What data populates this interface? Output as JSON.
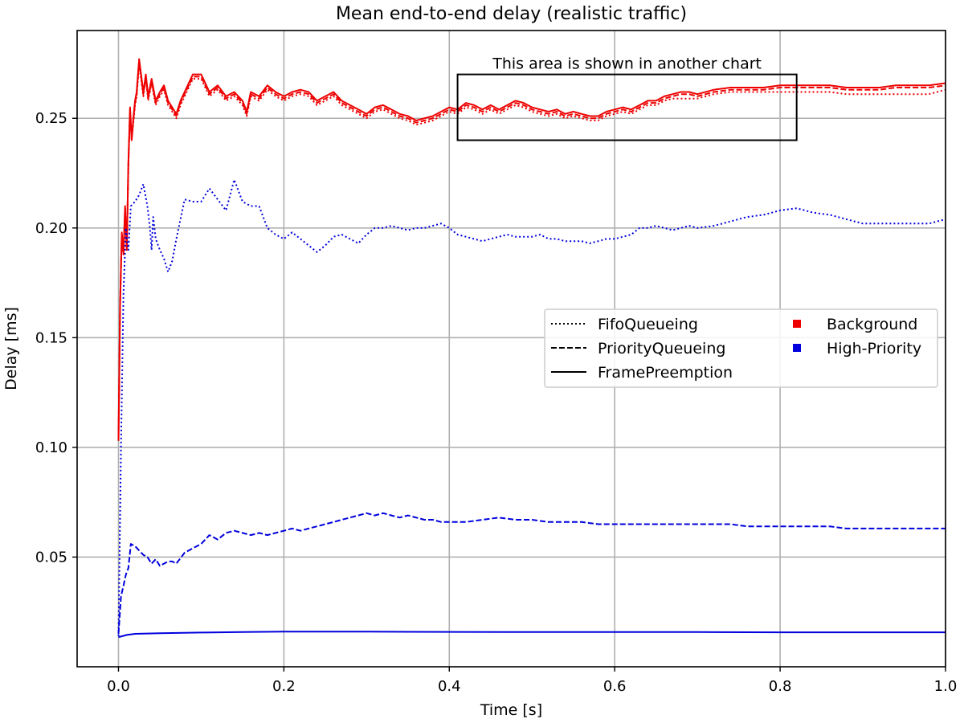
{
  "chart_data": {
    "type": "line",
    "title": "Mean end-to-end delay (realistic traffic)",
    "xlabel": "Time [s]",
    "ylabel": "Delay [ms]",
    "xlim": [
      -0.05,
      1.0
    ],
    "ylim": [
      0.0,
      0.29
    ],
    "xticks": [
      0.0,
      0.2,
      0.4,
      0.6,
      0.8,
      1.0
    ],
    "xtick_labels": [
      "0.0",
      "0.2",
      "0.4",
      "0.6",
      "0.8",
      "1.0"
    ],
    "yticks": [
      0.05,
      0.1,
      0.15,
      0.2,
      0.25
    ],
    "ytick_labels": [
      "0.05",
      "0.10",
      "0.15",
      "0.20",
      "0.25"
    ],
    "grid": true,
    "legend_position": "center-right",
    "colors": {
      "background": "#ee0000",
      "high_priority": "#0000dd"
    },
    "legend": {
      "styles": [
        {
          "label": "FifoQueueing",
          "dash": "dotted"
        },
        {
          "label": "PriorityQueueing",
          "dash": "dashed"
        },
        {
          "label": "FramePreemption",
          "dash": "solid"
        }
      ],
      "classes": [
        {
          "label": "Background",
          "color": "#ee0000"
        },
        {
          "label": "High-Priority",
          "color": "#0000dd"
        }
      ]
    },
    "annotation": {
      "text": "This area is shown in another chart",
      "x_range": [
        0.41,
        0.82
      ],
      "y_range": [
        0.24,
        0.27
      ]
    },
    "series": [
      {
        "name": "Background / FramePreemption",
        "color": "#ee0000",
        "dash": "solid",
        "x": [
          0.0,
          0.002,
          0.004,
          0.006,
          0.008,
          0.01,
          0.012,
          0.014,
          0.016,
          0.018,
          0.02,
          0.022,
          0.025,
          0.028,
          0.03,
          0.033,
          0.036,
          0.04,
          0.045,
          0.05,
          0.055,
          0.06,
          0.065,
          0.07,
          0.075,
          0.08,
          0.09,
          0.1,
          0.11,
          0.12,
          0.13,
          0.14,
          0.15,
          0.155,
          0.16,
          0.17,
          0.18,
          0.19,
          0.2,
          0.21,
          0.22,
          0.23,
          0.24,
          0.25,
          0.26,
          0.27,
          0.28,
          0.29,
          0.3,
          0.31,
          0.32,
          0.33,
          0.34,
          0.35,
          0.36,
          0.37,
          0.38,
          0.39,
          0.4,
          0.41,
          0.42,
          0.43,
          0.44,
          0.45,
          0.46,
          0.47,
          0.48,
          0.49,
          0.5,
          0.51,
          0.52,
          0.53,
          0.54,
          0.55,
          0.56,
          0.57,
          0.58,
          0.59,
          0.6,
          0.61,
          0.62,
          0.63,
          0.64,
          0.65,
          0.66,
          0.67,
          0.68,
          0.69,
          0.7,
          0.72,
          0.74,
          0.76,
          0.78,
          0.8,
          0.82,
          0.84,
          0.86,
          0.88,
          0.9,
          0.92,
          0.94,
          0.96,
          0.98,
          1.0
        ],
        "y": [
          0.103,
          0.165,
          0.198,
          0.188,
          0.21,
          0.19,
          0.23,
          0.255,
          0.24,
          0.25,
          0.258,
          0.262,
          0.277,
          0.268,
          0.262,
          0.27,
          0.26,
          0.268,
          0.258,
          0.262,
          0.265,
          0.258,
          0.255,
          0.252,
          0.258,
          0.262,
          0.27,
          0.27,
          0.262,
          0.265,
          0.26,
          0.262,
          0.258,
          0.253,
          0.262,
          0.26,
          0.265,
          0.262,
          0.26,
          0.262,
          0.263,
          0.262,
          0.258,
          0.26,
          0.262,
          0.258,
          0.256,
          0.254,
          0.252,
          0.255,
          0.256,
          0.254,
          0.252,
          0.251,
          0.249,
          0.25,
          0.251,
          0.253,
          0.255,
          0.254,
          0.257,
          0.256,
          0.254,
          0.256,
          0.254,
          0.256,
          0.258,
          0.257,
          0.255,
          0.254,
          0.253,
          0.254,
          0.252,
          0.253,
          0.252,
          0.251,
          0.251,
          0.253,
          0.254,
          0.255,
          0.254,
          0.256,
          0.258,
          0.258,
          0.26,
          0.261,
          0.262,
          0.262,
          0.261,
          0.263,
          0.264,
          0.264,
          0.264,
          0.265,
          0.265,
          0.265,
          0.265,
          0.264,
          0.264,
          0.264,
          0.265,
          0.265,
          0.265,
          0.266
        ]
      },
      {
        "name": "Background / PriorityQueueing",
        "color": "#ee0000",
        "dash": "dashed",
        "x": [
          0.0,
          0.002,
          0.004,
          0.006,
          0.008,
          0.01,
          0.012,
          0.014,
          0.016,
          0.018,
          0.02,
          0.022,
          0.025,
          0.028,
          0.03,
          0.033,
          0.036,
          0.04,
          0.045,
          0.05,
          0.055,
          0.06,
          0.065,
          0.07,
          0.075,
          0.08,
          0.09,
          0.1,
          0.11,
          0.12,
          0.13,
          0.14,
          0.15,
          0.155,
          0.16,
          0.17,
          0.18,
          0.19,
          0.2,
          0.21,
          0.22,
          0.23,
          0.24,
          0.25,
          0.26,
          0.27,
          0.28,
          0.29,
          0.3,
          0.31,
          0.32,
          0.33,
          0.34,
          0.35,
          0.36,
          0.37,
          0.38,
          0.39,
          0.4,
          0.41,
          0.42,
          0.43,
          0.44,
          0.45,
          0.46,
          0.47,
          0.48,
          0.49,
          0.5,
          0.51,
          0.52,
          0.53,
          0.54,
          0.55,
          0.56,
          0.57,
          0.58,
          0.59,
          0.6,
          0.61,
          0.62,
          0.63,
          0.64,
          0.65,
          0.66,
          0.67,
          0.68,
          0.69,
          0.7,
          0.72,
          0.74,
          0.76,
          0.78,
          0.8,
          0.82,
          0.84,
          0.86,
          0.88,
          0.9,
          0.92,
          0.94,
          0.96,
          0.98,
          1.0
        ],
        "y": [
          0.104,
          0.166,
          0.197,
          0.189,
          0.209,
          0.191,
          0.229,
          0.254,
          0.241,
          0.249,
          0.257,
          0.261,
          0.276,
          0.267,
          0.261,
          0.269,
          0.259,
          0.267,
          0.257,
          0.261,
          0.264,
          0.257,
          0.254,
          0.251,
          0.257,
          0.261,
          0.269,
          0.269,
          0.261,
          0.264,
          0.259,
          0.261,
          0.257,
          0.252,
          0.261,
          0.259,
          0.264,
          0.261,
          0.259,
          0.261,
          0.262,
          0.261,
          0.257,
          0.259,
          0.261,
          0.257,
          0.255,
          0.253,
          0.251,
          0.254,
          0.255,
          0.253,
          0.251,
          0.25,
          0.248,
          0.249,
          0.25,
          0.252,
          0.254,
          0.253,
          0.256,
          0.255,
          0.253,
          0.255,
          0.253,
          0.255,
          0.257,
          0.256,
          0.254,
          0.253,
          0.252,
          0.253,
          0.251,
          0.252,
          0.251,
          0.25,
          0.25,
          0.252,
          0.253,
          0.254,
          0.253,
          0.255,
          0.257,
          0.257,
          0.259,
          0.26,
          0.261,
          0.261,
          0.26,
          0.262,
          0.263,
          0.263,
          0.263,
          0.264,
          0.264,
          0.264,
          0.264,
          0.263,
          0.263,
          0.263,
          0.264,
          0.264,
          0.264,
          0.265
        ]
      },
      {
        "name": "Background / FifoQueueing",
        "color": "#ee0000",
        "dash": "dotted",
        "x": [
          0.0,
          0.002,
          0.004,
          0.006,
          0.008,
          0.01,
          0.012,
          0.014,
          0.016,
          0.018,
          0.02,
          0.022,
          0.025,
          0.028,
          0.03,
          0.033,
          0.036,
          0.04,
          0.045,
          0.05,
          0.055,
          0.06,
          0.065,
          0.07,
          0.075,
          0.08,
          0.09,
          0.1,
          0.11,
          0.12,
          0.13,
          0.14,
          0.15,
          0.155,
          0.16,
          0.17,
          0.18,
          0.19,
          0.2,
          0.21,
          0.22,
          0.23,
          0.24,
          0.25,
          0.26,
          0.27,
          0.28,
          0.29,
          0.3,
          0.31,
          0.32,
          0.33,
          0.34,
          0.35,
          0.36,
          0.37,
          0.38,
          0.39,
          0.4,
          0.41,
          0.42,
          0.43,
          0.44,
          0.45,
          0.46,
          0.47,
          0.48,
          0.49,
          0.5,
          0.51,
          0.52,
          0.53,
          0.54,
          0.55,
          0.56,
          0.57,
          0.58,
          0.59,
          0.6,
          0.61,
          0.62,
          0.63,
          0.64,
          0.65,
          0.66,
          0.67,
          0.68,
          0.69,
          0.7,
          0.72,
          0.74,
          0.76,
          0.78,
          0.8,
          0.82,
          0.84,
          0.86,
          0.88,
          0.9,
          0.92,
          0.94,
          0.96,
          0.98,
          1.0
        ],
        "y": [
          0.103,
          0.164,
          0.196,
          0.188,
          0.208,
          0.19,
          0.228,
          0.253,
          0.24,
          0.248,
          0.256,
          0.26,
          0.275,
          0.266,
          0.26,
          0.268,
          0.258,
          0.266,
          0.256,
          0.26,
          0.263,
          0.256,
          0.253,
          0.25,
          0.256,
          0.26,
          0.268,
          0.268,
          0.26,
          0.263,
          0.258,
          0.26,
          0.256,
          0.251,
          0.26,
          0.258,
          0.263,
          0.26,
          0.258,
          0.26,
          0.261,
          0.26,
          0.256,
          0.258,
          0.26,
          0.256,
          0.254,
          0.252,
          0.25,
          0.253,
          0.254,
          0.252,
          0.25,
          0.249,
          0.247,
          0.248,
          0.249,
          0.251,
          0.253,
          0.252,
          0.255,
          0.254,
          0.252,
          0.254,
          0.252,
          0.254,
          0.256,
          0.255,
          0.253,
          0.252,
          0.251,
          0.252,
          0.25,
          0.251,
          0.25,
          0.249,
          0.249,
          0.251,
          0.252,
          0.253,
          0.252,
          0.254,
          0.256,
          0.256,
          0.258,
          0.259,
          0.259,
          0.259,
          0.259,
          0.261,
          0.262,
          0.262,
          0.262,
          0.262,
          0.262,
          0.262,
          0.262,
          0.261,
          0.261,
          0.261,
          0.261,
          0.261,
          0.261,
          0.263
        ]
      },
      {
        "name": "High-Priority / FifoQueueing",
        "color": "#0000dd",
        "dash": "dotted",
        "x": [
          0.0,
          0.003,
          0.006,
          0.009,
          0.012,
          0.015,
          0.02,
          0.025,
          0.03,
          0.035,
          0.038,
          0.04,
          0.042,
          0.045,
          0.05,
          0.055,
          0.06,
          0.065,
          0.07,
          0.08,
          0.09,
          0.1,
          0.11,
          0.12,
          0.13,
          0.14,
          0.15,
          0.16,
          0.17,
          0.18,
          0.19,
          0.2,
          0.21,
          0.22,
          0.23,
          0.24,
          0.25,
          0.26,
          0.27,
          0.28,
          0.29,
          0.3,
          0.31,
          0.32,
          0.33,
          0.34,
          0.35,
          0.36,
          0.37,
          0.38,
          0.39,
          0.4,
          0.41,
          0.42,
          0.43,
          0.44,
          0.45,
          0.46,
          0.47,
          0.48,
          0.49,
          0.5,
          0.51,
          0.52,
          0.53,
          0.54,
          0.55,
          0.56,
          0.57,
          0.58,
          0.59,
          0.6,
          0.61,
          0.62,
          0.63,
          0.64,
          0.65,
          0.66,
          0.67,
          0.68,
          0.69,
          0.7,
          0.72,
          0.74,
          0.76,
          0.78,
          0.8,
          0.82,
          0.84,
          0.86,
          0.88,
          0.9,
          0.92,
          0.94,
          0.96,
          0.98,
          1.0
        ],
        "y": [
          0.014,
          0.1,
          0.17,
          0.2,
          0.19,
          0.21,
          0.212,
          0.215,
          0.22,
          0.21,
          0.2,
          0.19,
          0.205,
          0.195,
          0.19,
          0.186,
          0.18,
          0.185,
          0.195,
          0.213,
          0.212,
          0.212,
          0.218,
          0.213,
          0.208,
          0.222,
          0.212,
          0.21,
          0.21,
          0.2,
          0.197,
          0.195,
          0.198,
          0.195,
          0.192,
          0.189,
          0.192,
          0.196,
          0.197,
          0.195,
          0.193,
          0.197,
          0.2,
          0.2,
          0.201,
          0.2,
          0.199,
          0.2,
          0.2,
          0.201,
          0.202,
          0.2,
          0.197,
          0.196,
          0.195,
          0.194,
          0.195,
          0.196,
          0.197,
          0.196,
          0.196,
          0.196,
          0.197,
          0.195,
          0.195,
          0.194,
          0.194,
          0.194,
          0.193,
          0.194,
          0.195,
          0.195,
          0.196,
          0.197,
          0.2,
          0.2,
          0.201,
          0.2,
          0.199,
          0.2,
          0.201,
          0.2,
          0.201,
          0.203,
          0.205,
          0.206,
          0.208,
          0.209,
          0.207,
          0.206,
          0.204,
          0.202,
          0.202,
          0.202,
          0.202,
          0.202,
          0.204
        ]
      },
      {
        "name": "High-Priority / PriorityQueueing",
        "color": "#0000dd",
        "dash": "dashed",
        "x": [
          0.0,
          0.003,
          0.006,
          0.009,
          0.012,
          0.015,
          0.02,
          0.025,
          0.03,
          0.035,
          0.04,
          0.045,
          0.05,
          0.055,
          0.06,
          0.065,
          0.07,
          0.08,
          0.09,
          0.1,
          0.11,
          0.12,
          0.13,
          0.14,
          0.15,
          0.16,
          0.17,
          0.18,
          0.19,
          0.2,
          0.21,
          0.22,
          0.23,
          0.24,
          0.25,
          0.26,
          0.27,
          0.28,
          0.29,
          0.3,
          0.31,
          0.32,
          0.33,
          0.34,
          0.35,
          0.36,
          0.37,
          0.38,
          0.39,
          0.4,
          0.42,
          0.44,
          0.46,
          0.48,
          0.5,
          0.52,
          0.54,
          0.56,
          0.58,
          0.6,
          0.62,
          0.64,
          0.66,
          0.68,
          0.7,
          0.72,
          0.74,
          0.76,
          0.78,
          0.8,
          0.82,
          0.84,
          0.86,
          0.88,
          0.9,
          0.92,
          0.94,
          0.96,
          0.98,
          1.0
        ],
        "y": [
          0.015,
          0.032,
          0.037,
          0.042,
          0.045,
          0.056,
          0.055,
          0.053,
          0.051,
          0.05,
          0.047,
          0.049,
          0.046,
          0.047,
          0.048,
          0.048,
          0.047,
          0.052,
          0.054,
          0.056,
          0.06,
          0.058,
          0.061,
          0.062,
          0.061,
          0.06,
          0.061,
          0.06,
          0.061,
          0.062,
          0.063,
          0.062,
          0.063,
          0.064,
          0.065,
          0.066,
          0.067,
          0.068,
          0.069,
          0.07,
          0.069,
          0.07,
          0.069,
          0.068,
          0.069,
          0.068,
          0.067,
          0.067,
          0.066,
          0.066,
          0.066,
          0.067,
          0.068,
          0.067,
          0.067,
          0.066,
          0.066,
          0.066,
          0.065,
          0.065,
          0.065,
          0.065,
          0.065,
          0.065,
          0.065,
          0.065,
          0.065,
          0.064,
          0.064,
          0.064,
          0.064,
          0.064,
          0.064,
          0.063,
          0.063,
          0.063,
          0.063,
          0.063,
          0.063,
          0.063
        ]
      },
      {
        "name": "High-Priority / FramePreemption",
        "color": "#0000dd",
        "dash": "solid",
        "x": [
          0.0,
          0.01,
          0.02,
          0.05,
          0.1,
          0.15,
          0.2,
          0.3,
          0.4,
          0.5,
          0.6,
          0.7,
          0.8,
          0.9,
          1.0
        ],
        "y": [
          0.0135,
          0.0145,
          0.015,
          0.0153,
          0.0156,
          0.0158,
          0.016,
          0.016,
          0.0159,
          0.0158,
          0.0158,
          0.0158,
          0.0157,
          0.0157,
          0.0157
        ]
      }
    ]
  }
}
